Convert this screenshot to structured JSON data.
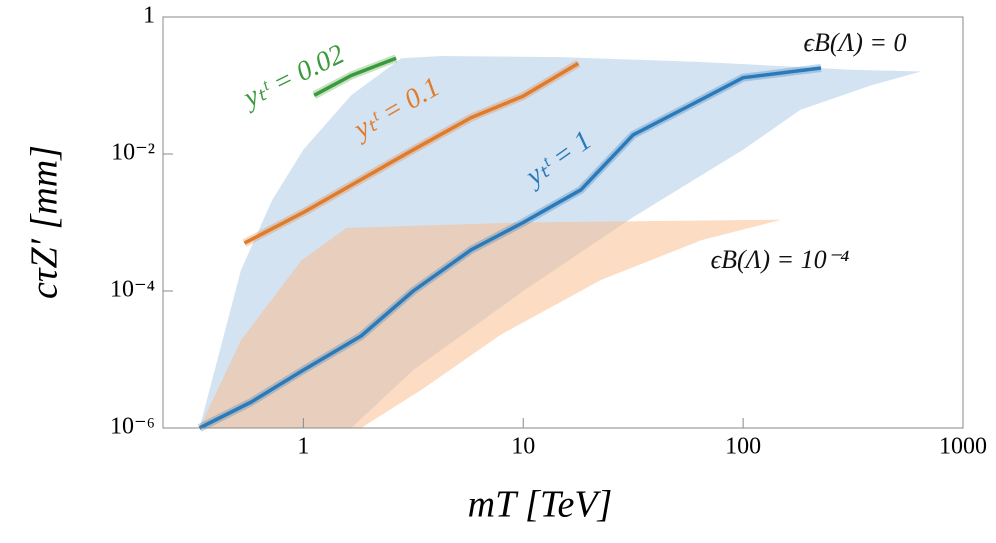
{
  "chart_data": {
    "type": "line",
    "xlabel": "mT [TeV]",
    "ylabel": "cτZ′ [mm]",
    "xlog": true,
    "ylog": true,
    "xlim": [
      0.23,
      1000
    ],
    "ylim": [
      1e-06,
      1
    ],
    "xticks": [
      1,
      10,
      100,
      1000
    ],
    "yticks": [
      {
        "value": 1e-06,
        "label": "10⁻⁶"
      },
      {
        "value": 0.0001,
        "label": "10⁻⁴"
      },
      {
        "value": 0.01,
        "label": "10⁻²"
      },
      1
    ],
    "bands": [
      {
        "name": "ϵB(Λ) = 0",
        "color": "#a9c8e6",
        "x": [
          0.337,
          0.52,
          0.72,
          1,
          1.65,
          2.79,
          4.24,
          14.9,
          64.5,
          310,
          646,
          380,
          182,
          100,
          31.6,
          10,
          3.16,
          1.65
        ],
        "y": [
          1e-06,
          0.0002,
          0.0021,
          0.0115,
          0.072,
          0.25,
          0.27,
          0.26,
          0.22,
          0.17,
          0.16,
          0.1,
          0.044,
          0.0115,
          0.0012,
          0.0001,
          7e-06,
          1e-06
        ]
      },
      {
        "name": "ϵB(Λ) = 10⁻⁴",
        "color": "#f9b988",
        "x": [
          0.337,
          0.52,
          0.98,
          1.57,
          9.8,
          149,
          64.5,
          22.6,
          7.9,
          3.44,
          1.83
        ],
        "y": [
          1e-06,
          1.9e-05,
          0.00028,
          0.00083,
          0.001,
          0.0011,
          0.00055,
          0.000145,
          2.3e-05,
          3.6e-06,
          1e-06
        ]
      }
    ],
    "series": [
      {
        "name": "yₜᵗ = 1",
        "color": "#2a7ab9",
        "x": [
          0.337,
          0.58,
          1,
          1.83,
          3.16,
          5.8,
          10,
          18.3,
          31.6,
          57.8,
          100,
          226
        ],
        "values": [
          1e-06,
          2.4e-06,
          7e-06,
          2.2e-05,
          0.0001,
          0.0004,
          0.001,
          0.003,
          0.019,
          0.052,
          0.13,
          0.18
        ]
      },
      {
        "name": "yₜᵗ = 0.1",
        "color": "#e07b2a",
        "x": [
          0.54,
          1,
          3.16,
          5.8,
          10,
          17.8
        ],
        "values": [
          0.0005,
          0.0014,
          0.0115,
          0.034,
          0.07,
          0.21
        ]
      },
      {
        "name": "yₜᵗ = 0.02",
        "color": "#3a9a3a",
        "x": [
          1.12,
          1.65,
          2.64
        ],
        "values": [
          0.072,
          0.14,
          0.25
        ]
      }
    ]
  }
}
